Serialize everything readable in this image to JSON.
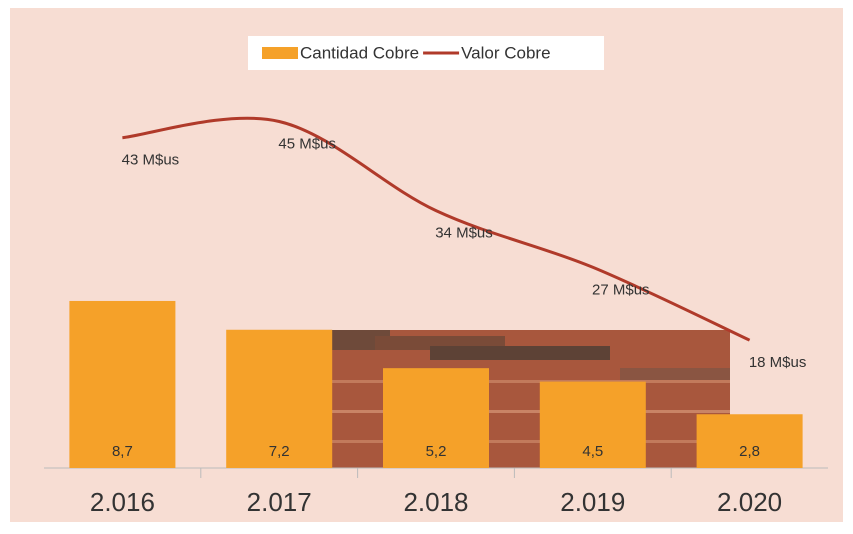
{
  "chart_data": {
    "type": "bar",
    "categories": [
      "2.016",
      "2.017",
      "2.018",
      "2.019",
      "2.020"
    ],
    "series": [
      {
        "name": "Cantidad Cobre",
        "type": "bar",
        "color": "#f5a129",
        "values": [
          8.7,
          7.2,
          5.2,
          4.5,
          2.8
        ],
        "value_labels": [
          "8,7",
          "7,2",
          "5,2",
          "4,5",
          "2,8"
        ]
      },
      {
        "name": "Valor Cobre",
        "type": "line",
        "axis": "y2",
        "color": "#b03a2a",
        "values": [
          43,
          45,
          34,
          27,
          18
        ],
        "value_labels": [
          "43 M$us",
          "45 M$us",
          "34 M$us",
          "27 M$us",
          "18 M$us"
        ]
      }
    ]
  }
}
